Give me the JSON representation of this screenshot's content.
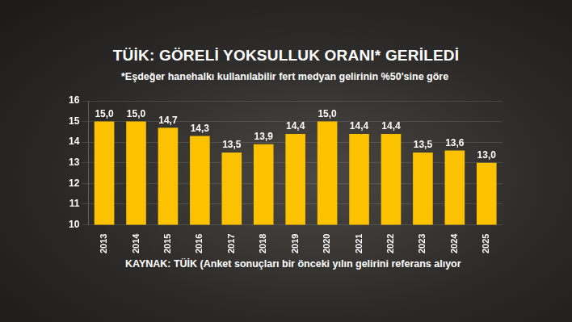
{
  "chart_data": {
    "type": "bar",
    "title": "TÜİK: GÖRELİ YOKSULLUK ORANI* GERİLEDİ",
    "subtitle": "*Eşdeğer hanehalkı kullanılabilir fert medyan gelirinin %50'sine göre",
    "source": "KAYNAK: TÜİK (Anket sonuçları bir önceki yılın gelirini referans alıyor",
    "categories": [
      "2013",
      "2014",
      "2015",
      "2016",
      "2017",
      "2018",
      "2019",
      "2020",
      "2021",
      "2022",
      "2023",
      "2024",
      "2025"
    ],
    "values": [
      15.0,
      15.0,
      14.7,
      14.3,
      13.5,
      13.9,
      14.4,
      15.0,
      14.4,
      14.4,
      13.5,
      13.6,
      13.0
    ],
    "value_labels": [
      "15,0",
      "15,0",
      "14,7",
      "14,3",
      "13,5",
      "13,9",
      "14,4",
      "15,0",
      "14,4",
      "14,4",
      "13,5",
      "13,6",
      "13,0"
    ],
    "color": "#fcc200",
    "ylim": [
      10,
      16
    ],
    "yticks": [
      10,
      11,
      12,
      13,
      14,
      15,
      16
    ],
    "grid": true,
    "data_labels": true
  }
}
